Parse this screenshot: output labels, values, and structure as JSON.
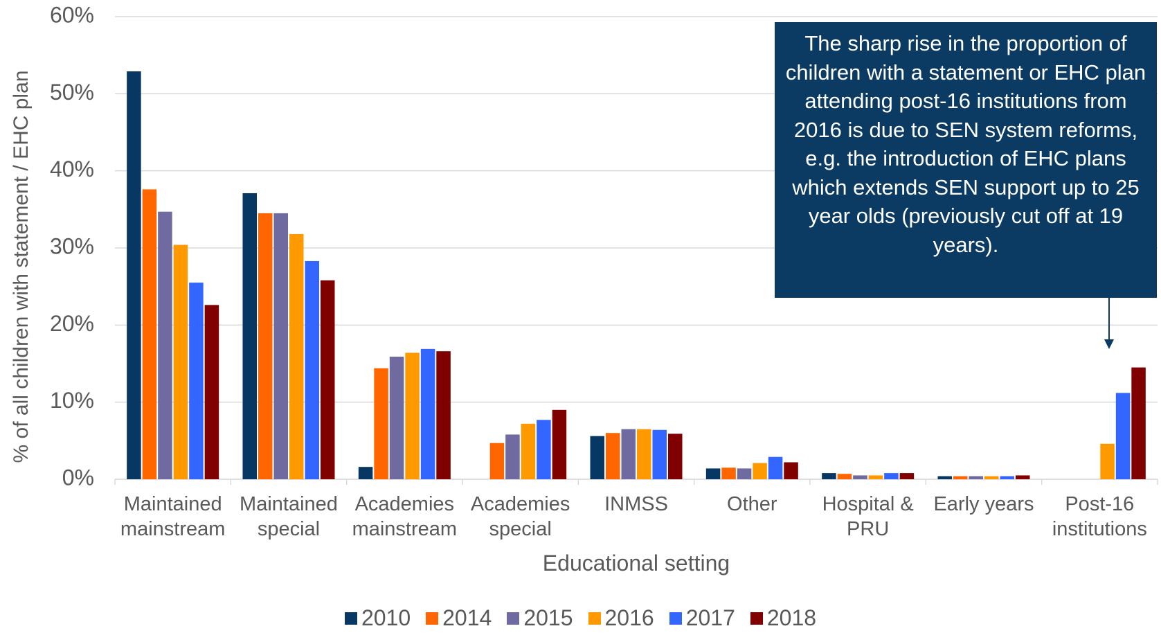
{
  "chart_data": {
    "type": "bar",
    "y_label": "% of all children with statement / EHC plan",
    "x_label": "Educational setting",
    "annotation": "The sharp rise in the proportion of children with a statement or EHC plan attending post-16 institutions from 2016 is due to SEN system reforms, e.g. the introduction of EHC plans which extends SEN support up to 25 year olds (previously cut off at 19 years).",
    "categories": [
      "Maintained mainstream",
      "Maintained special",
      "Academies mainstream",
      "Academies special",
      "INMSS",
      "Other",
      "Hospital & PRU",
      "Early years",
      "Post-16 institutions"
    ],
    "series": [
      {
        "name": "2010",
        "color": "#073763",
        "values": [
          52.9,
          37.1,
          1.6,
          null,
          5.6,
          1.4,
          0.8,
          0.4,
          null
        ]
      },
      {
        "name": "2014",
        "color": "#ff6600",
        "values": [
          37.6,
          34.5,
          14.4,
          4.7,
          6.0,
          1.5,
          0.7,
          0.4,
          null
        ]
      },
      {
        "name": "2015",
        "color": "#6f6ba0",
        "values": [
          34.7,
          34.5,
          15.9,
          5.8,
          6.5,
          1.4,
          0.5,
          0.4,
          null
        ]
      },
      {
        "name": "2016",
        "color": "#ff9900",
        "values": [
          30.4,
          31.8,
          16.4,
          7.2,
          6.5,
          2.1,
          0.5,
          0.4,
          4.6
        ]
      },
      {
        "name": "2017",
        "color": "#3366ff",
        "values": [
          25.5,
          28.3,
          16.9,
          7.7,
          6.4,
          2.9,
          0.8,
          0.4,
          11.2
        ]
      },
      {
        "name": "2018",
        "color": "#800000",
        "values": [
          22.6,
          25.8,
          16.6,
          9.0,
          5.9,
          2.2,
          0.8,
          0.5,
          14.5
        ]
      }
    ],
    "ylim": [
      0,
      60
    ],
    "yticks": [
      {
        "value": 0,
        "label": "0%"
      },
      {
        "value": 10,
        "label": "10%"
      },
      {
        "value": 20,
        "label": "20%"
      },
      {
        "value": 30,
        "label": "30%"
      },
      {
        "value": 40,
        "label": "40%"
      },
      {
        "value": 50,
        "label": "50%"
      },
      {
        "value": 60,
        "label": "60%"
      }
    ],
    "grid": true,
    "legend": "bottom"
  }
}
